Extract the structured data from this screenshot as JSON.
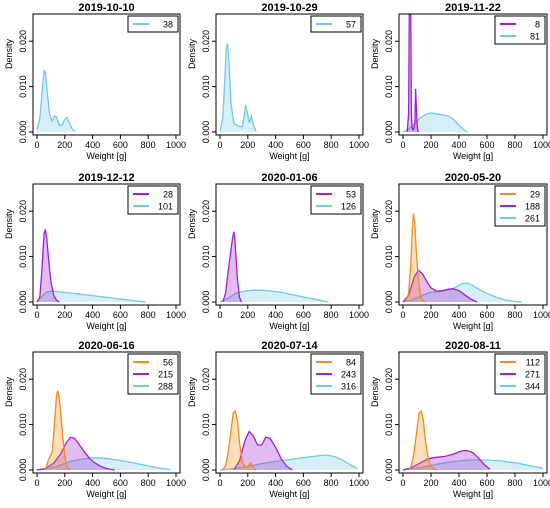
{
  "colors": {
    "d38": "#73c8e3",
    "d57": "#73c8e3",
    "d81": "#73c8e3",
    "d101": "#73c8e3",
    "d126": "#73c8e3",
    "d261": "#73c8e3",
    "d288": "#73c8e3",
    "d316": "#73c8e3",
    "d344": "#73c8e3",
    "d8": "#a020d0",
    "d28": "#a020d0",
    "d53": "#a020d0",
    "d188": "#a020d0",
    "d215": "#a020d0",
    "d243": "#a020d0",
    "d271": "#a020d0",
    "d29": "#f28c1e",
    "d56": "#f28c1e",
    "d84": "#f28c1e",
    "d112": "#f28c1e"
  },
  "chart_data": [
    {
      "type": "area",
      "title": "2019-10-10",
      "xlabel": "Weight [g]",
      "ylabel": "Density",
      "xlim": [
        0,
        1000
      ],
      "ylim": [
        0,
        0.026
      ],
      "xticks": [
        "0",
        "200",
        "400",
        "600",
        "800",
        "1000"
      ],
      "yticks": [
        "0.000",
        "0.010",
        "0.020"
      ],
      "legend": "top-right",
      "series": [
        {
          "name": "38",
          "color": "cyan",
          "x": [
            0,
            20,
            40,
            50,
            60,
            70,
            90,
            110,
            125,
            140,
            160,
            180,
            200,
            215,
            230,
            250,
            270
          ],
          "y": [
            0.0005,
            0.003,
            0.01,
            0.0135,
            0.0132,
            0.01,
            0.004,
            0.0025,
            0.0035,
            0.0033,
            0.0015,
            0.0015,
            0.0028,
            0.0032,
            0.0022,
            0.0008,
            0.0002
          ]
        }
      ]
    },
    {
      "type": "area",
      "title": "2019-10-29",
      "xlabel": "Weight [g]",
      "ylabel": "Density",
      "xlim": [
        0,
        1000
      ],
      "ylim": [
        0,
        0.026
      ],
      "xticks": [
        "0",
        "200",
        "400",
        "600",
        "800",
        "1000"
      ],
      "yticks": [
        "0.000",
        "0.010",
        "0.020"
      ],
      "legend": "top-right",
      "series": [
        {
          "name": "57",
          "color": "cyan",
          "x": [
            0,
            20,
            35,
            45,
            55,
            65,
            80,
            100,
            120,
            140,
            160,
            175,
            185,
            195,
            210,
            225,
            240,
            260
          ],
          "y": [
            0.0002,
            0.003,
            0.012,
            0.0185,
            0.0195,
            0.015,
            0.006,
            0.002,
            0.0015,
            0.0012,
            0.0012,
            0.0035,
            0.006,
            0.0045,
            0.002,
            0.0035,
            0.0015,
            0.0001
          ]
        }
      ]
    },
    {
      "type": "area",
      "title": "2019-11-22",
      "xlabel": "Weight [g]",
      "ylabel": "Density",
      "xlim": [
        0,
        1000
      ],
      "ylim": [
        0,
        0.026
      ],
      "xticks": [
        "0",
        "200",
        "400",
        "600",
        "800",
        "1000"
      ],
      "yticks": [
        "0.000",
        "0.010",
        "0.020"
      ],
      "legend": "top-right",
      "series": [
        {
          "name": "8",
          "color": "purple",
          "x": [
            30,
            40,
            45,
            50,
            55,
            60,
            65,
            70,
            75,
            85,
            90,
            95,
            100,
            105,
            110
          ],
          "y": [
            0,
            0.004,
            0.028,
            0.03,
            0.027,
            0.004,
            0.001,
            0.0005,
            0.0005,
            0.002,
            0.0095,
            0.006,
            0.002,
            0.0005,
            0
          ]
        },
        {
          "name": "81",
          "color": "cyan",
          "x": [
            0,
            40,
            80,
            120,
            160,
            200,
            240,
            280,
            320,
            360,
            400,
            430,
            460
          ],
          "y": [
            0,
            0.0006,
            0.0018,
            0.003,
            0.0039,
            0.0042,
            0.004,
            0.0038,
            0.0036,
            0.0028,
            0.0015,
            0.0006,
            0
          ]
        }
      ]
    },
    {
      "type": "area",
      "title": "2019-12-12",
      "xlabel": "Weight [g]",
      "ylabel": "Density",
      "xlim": [
        0,
        1000
      ],
      "ylim": [
        0,
        0.026
      ],
      "xticks": [
        "0",
        "200",
        "400",
        "600",
        "800",
        "1000"
      ],
      "yticks": [
        "0.000",
        "0.010",
        "0.020"
      ],
      "legend": "top-right",
      "series": [
        {
          "name": "28",
          "color": "purple",
          "x": [
            0,
            20,
            35,
            50,
            60,
            70,
            85,
            100,
            120,
            140,
            160
          ],
          "y": [
            0,
            0.001,
            0.007,
            0.015,
            0.016,
            0.014,
            0.009,
            0.0045,
            0.0015,
            0.0004,
            0
          ]
        },
        {
          "name": "101",
          "color": "cyan",
          "x": [
            0,
            30,
            70,
            100,
            150,
            200,
            260,
            320,
            400,
            480,
            560,
            640,
            720,
            780
          ],
          "y": [
            0.0002,
            0.001,
            0.0022,
            0.0024,
            0.0023,
            0.0021,
            0.0019,
            0.0017,
            0.0014,
            0.0011,
            0.0008,
            0.0005,
            0.0002,
            0
          ]
        }
      ]
    },
    {
      "type": "area",
      "title": "2020-01-06",
      "xlabel": "Weight [g]",
      "ylabel": "Density",
      "xlim": [
        0,
        1000
      ],
      "ylim": [
        0,
        0.026
      ],
      "xticks": [
        "0",
        "200",
        "400",
        "600",
        "800",
        "1000"
      ],
      "yticks": [
        "0.000",
        "0.010",
        "0.020"
      ],
      "legend": "top-right",
      "series": [
        {
          "name": "53",
          "color": "purple",
          "x": [
            20,
            40,
            60,
            75,
            90,
            100,
            105,
            115,
            125,
            140,
            155
          ],
          "y": [
            0,
            0.002,
            0.007,
            0.0105,
            0.014,
            0.0155,
            0.0145,
            0.01,
            0.005,
            0.001,
            0
          ]
        },
        {
          "name": "126",
          "color": "cyan",
          "x": [
            0,
            40,
            80,
            120,
            180,
            240,
            300,
            380,
            460,
            540,
            620,
            700,
            780
          ],
          "y": [
            0,
            0.0005,
            0.0013,
            0.002,
            0.0024,
            0.0026,
            0.0026,
            0.0024,
            0.002,
            0.0015,
            0.001,
            0.0005,
            0
          ]
        }
      ]
    },
    {
      "type": "area",
      "title": "2020-05-20",
      "xlabel": "Weight [g]",
      "ylabel": "Density",
      "xlim": [
        0,
        1000
      ],
      "ylim": [
        0,
        0.026
      ],
      "xticks": [
        "0",
        "200",
        "400",
        "600",
        "800",
        "1000"
      ],
      "yticks": [
        "0.000",
        "0.010",
        "0.020"
      ],
      "legend": "top-right",
      "series": [
        {
          "name": "29",
          "color": "orange",
          "x": [
            20,
            40,
            55,
            65,
            75,
            85,
            95,
            110,
            125,
            140,
            160
          ],
          "y": [
            0,
            0.002,
            0.008,
            0.015,
            0.0195,
            0.017,
            0.011,
            0.005,
            0.0015,
            0.0004,
            0
          ]
        },
        {
          "name": "188",
          "color": "purple",
          "x": [
            0,
            40,
            80,
            110,
            140,
            170,
            200,
            240,
            280,
            320,
            360,
            400,
            440,
            480,
            530
          ],
          "y": [
            0,
            0.0015,
            0.0055,
            0.007,
            0.0062,
            0.0045,
            0.0031,
            0.0024,
            0.0025,
            0.0028,
            0.0029,
            0.0025,
            0.0016,
            0.0007,
            0
          ]
        },
        {
          "name": "261",
          "color": "cyan",
          "x": [
            0,
            60,
            120,
            180,
            240,
            300,
            360,
            420,
            460,
            500,
            560,
            620,
            680,
            740,
            800,
            850
          ],
          "y": [
            0,
            0.0004,
            0.0012,
            0.002,
            0.0023,
            0.0025,
            0.003,
            0.004,
            0.0042,
            0.0036,
            0.0025,
            0.0016,
            0.0009,
            0.0004,
            0.0001,
            0
          ]
        }
      ]
    },
    {
      "type": "area",
      "title": "2020-06-16",
      "xlabel": "Weight [g]",
      "ylabel": "Density",
      "xlim": [
        0,
        1000
      ],
      "ylim": [
        0,
        0.026
      ],
      "xticks": [
        "0",
        "200",
        "400",
        "600",
        "800",
        "1000"
      ],
      "yticks": [
        "0.000",
        "0.010",
        "0.020"
      ],
      "legend": "top-right",
      "series": [
        {
          "name": "56",
          "color": "orange",
          "x": [
            60,
            80,
            95,
            110,
            125,
            140,
            150,
            160,
            175,
            190,
            205,
            220,
            240
          ],
          "y": [
            0,
            0.002,
            0.003,
            0.004,
            0.01,
            0.0165,
            0.0175,
            0.016,
            0.011,
            0.006,
            0.002,
            0.0005,
            0
          ]
        },
        {
          "name": "215",
          "color": "purple",
          "x": [
            0,
            60,
            120,
            170,
            210,
            240,
            270,
            300,
            340,
            380,
            420,
            460,
            500,
            560
          ],
          "y": [
            0,
            0.0003,
            0.0015,
            0.0035,
            0.006,
            0.0072,
            0.007,
            0.0058,
            0.004,
            0.0025,
            0.0015,
            0.0008,
            0.0003,
            0
          ]
        },
        {
          "name": "288",
          "color": "cyan",
          "x": [
            0,
            80,
            160,
            240,
            320,
            400,
            480,
            560,
            640,
            720,
            800,
            880,
            960
          ],
          "y": [
            0,
            0.0003,
            0.001,
            0.0019,
            0.0024,
            0.0027,
            0.0026,
            0.0023,
            0.0019,
            0.0014,
            0.0009,
            0.0004,
            0.0001
          ]
        }
      ]
    },
    {
      "type": "area",
      "title": "2020-07-14",
      "xlabel": "Weight [g]",
      "ylabel": "Density",
      "xlim": [
        0,
        1000
      ],
      "ylim": [
        0,
        0.026
      ],
      "xticks": [
        "0",
        "200",
        "400",
        "600",
        "800",
        "1000"
      ],
      "yticks": [
        "0.000",
        "0.010",
        "0.020"
      ],
      "legend": "top-right",
      "series": [
        {
          "name": "84",
          "color": "orange",
          "x": [
            20,
            40,
            60,
            80,
            95,
            110,
            125,
            140,
            160,
            180,
            200,
            220,
            240,
            260
          ],
          "y": [
            0,
            0.001,
            0.004,
            0.009,
            0.0125,
            0.013,
            0.011,
            0.006,
            0.002,
            0.0005,
            0.0008,
            0.0015,
            0.0005,
            0
          ]
        },
        {
          "name": "243",
          "color": "purple",
          "x": [
            100,
            140,
            180,
            210,
            240,
            270,
            300,
            330,
            360,
            400,
            440,
            480,
            520
          ],
          "y": [
            0,
            0.002,
            0.0065,
            0.0085,
            0.0075,
            0.0055,
            0.0055,
            0.0072,
            0.007,
            0.005,
            0.0025,
            0.0008,
            0
          ]
        },
        {
          "name": "316",
          "color": "cyan",
          "x": [
            0,
            100,
            200,
            300,
            400,
            500,
            600,
            700,
            760,
            820,
            880,
            940,
            990
          ],
          "y": [
            0,
            0.0003,
            0.0008,
            0.0014,
            0.0019,
            0.0023,
            0.0027,
            0.0031,
            0.0033,
            0.003,
            0.0022,
            0.0011,
            0.0003
          ]
        }
      ]
    },
    {
      "type": "area",
      "title": "2020-08-11",
      "xlabel": "Weight [g]",
      "ylabel": "Density",
      "xlim": [
        0,
        1000
      ],
      "ylim": [
        0,
        0.026
      ],
      "xticks": [
        "0",
        "200",
        "400",
        "600",
        "800",
        "1000"
      ],
      "yticks": [
        "0.000",
        "0.010",
        "0.020"
      ],
      "legend": "top-right",
      "series": [
        {
          "name": "112",
          "color": "orange",
          "x": [
            40,
            60,
            80,
            100,
            115,
            130,
            145,
            160,
            180,
            200,
            220,
            240
          ],
          "y": [
            0,
            0.001,
            0.004,
            0.009,
            0.0125,
            0.013,
            0.011,
            0.0065,
            0.0025,
            0.0008,
            0.0002,
            0
          ]
        },
        {
          "name": "271",
          "color": "purple",
          "x": [
            0,
            60,
            120,
            180,
            240,
            300,
            360,
            420,
            460,
            500,
            540,
            580,
            620
          ],
          "y": [
            0,
            0.0005,
            0.0015,
            0.0025,
            0.0028,
            0.003,
            0.0035,
            0.0042,
            0.0043,
            0.0038,
            0.0026,
            0.0012,
            0.0002
          ]
        },
        {
          "name": "344",
          "color": "cyan",
          "x": [
            0,
            100,
            200,
            300,
            400,
            500,
            600,
            700,
            800,
            900,
            1000
          ],
          "y": [
            0,
            0.0004,
            0.001,
            0.0016,
            0.002,
            0.0022,
            0.0022,
            0.002,
            0.0016,
            0.001,
            0.0004
          ]
        }
      ]
    }
  ]
}
